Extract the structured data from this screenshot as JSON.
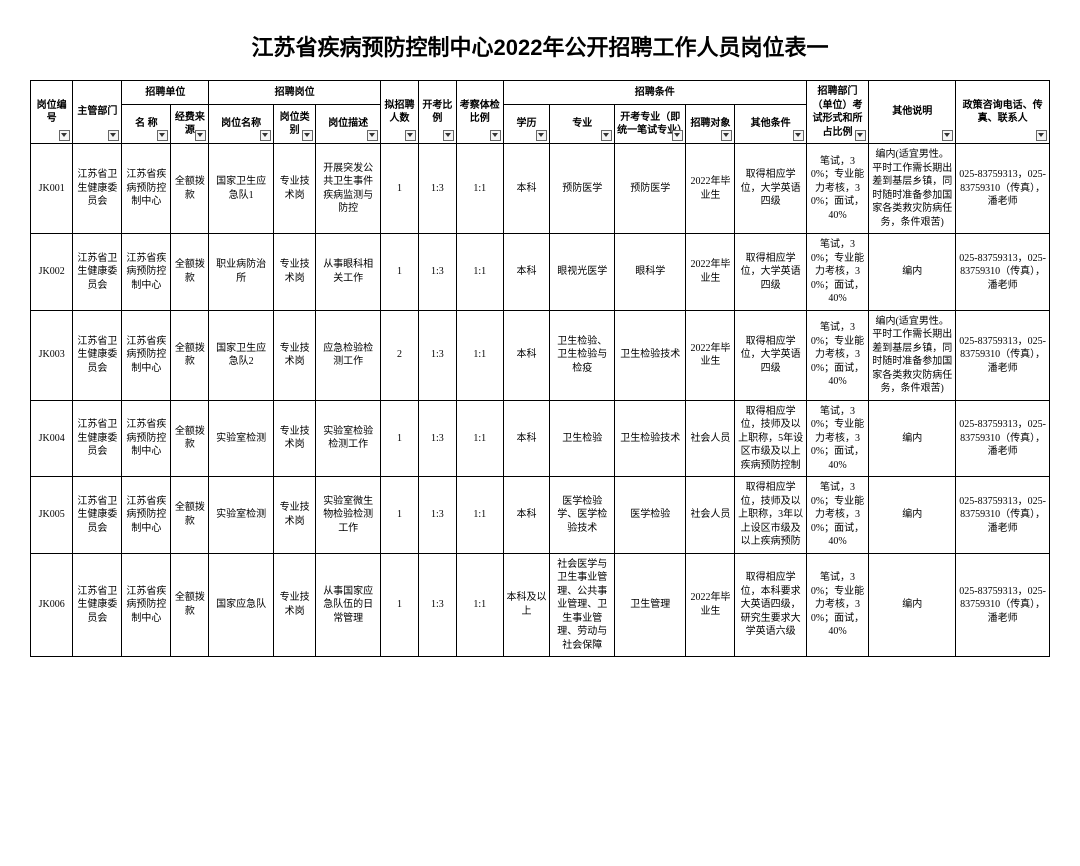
{
  "title": "江苏省疾病预防控制中心2022年公开招聘工作人员岗位表一",
  "headers": {
    "group_unit": "招聘单位",
    "group_post": "招聘岗位",
    "group_cond": "招聘条件",
    "c1": "岗位编号",
    "c2": "主管部门",
    "c3": "名 称",
    "c4": "经费来源",
    "c5": "岗位名称",
    "c6": "岗位类别",
    "c7": "岗位描述",
    "c8": "拟招聘人数",
    "c9": "开考比例",
    "c10": "考察体检比例",
    "c11": "学历",
    "c12": "专业",
    "c13": "开考专业（即统一笔试专业）",
    "c14": "招聘对象",
    "c15": "其他条件",
    "c16": "招聘部门（单位）考试形式和所占比例",
    "c17": "其他说明",
    "c18": "政策咨询电话、传真、联系人"
  },
  "rows": [
    {
      "id": "JK001",
      "dept": "江苏省卫生健康委员会",
      "unit": "江苏省疾病预防控制中心",
      "fund": "全额拨款",
      "post": "国家卫生应急队1",
      "cat": "专业技术岗",
      "desc": "开展突发公共卫生事件疾病监测与防控",
      "num": "1",
      "ratio": "1:3",
      "exam_ratio": "1:1",
      "edu": "本科",
      "major": "预防医学",
      "exam_major": "预防医学",
      "target": "2022年毕业生",
      "other_cond": "取得相应学位，大学英语四级",
      "exam_form": "笔试，30%；专业能力考核，30%；面试，40%",
      "note": "编内(适宜男性。平时工作需长期出差到基层乡镇，同时随时准备参加国家各类救灾防病任务，条件艰苦)",
      "contact": "025-83759313，025-83759310（传真），潘老师"
    },
    {
      "id": "JK002",
      "dept": "江苏省卫生健康委员会",
      "unit": "江苏省疾病预防控制中心",
      "fund": "全额拨款",
      "post": "职业病防治所",
      "cat": "专业技术岗",
      "desc": "从事眼科相关工作",
      "num": "1",
      "ratio": "1:3",
      "exam_ratio": "1:1",
      "edu": "本科",
      "major": "眼视光医学",
      "exam_major": "眼科学",
      "target": "2022年毕业生",
      "other_cond": "取得相应学位，大学英语四级",
      "exam_form": "笔试，30%；专业能力考核，30%；面试，40%",
      "note": "编内",
      "contact": "025-83759313，025-83759310（传真），潘老师"
    },
    {
      "id": "JK003",
      "dept": "江苏省卫生健康委员会",
      "unit": "江苏省疾病预防控制中心",
      "fund": "全额拨款",
      "post": "国家卫生应急队2",
      "cat": "专业技术岗",
      "desc": "应急检验检测工作",
      "num": "2",
      "ratio": "1:3",
      "exam_ratio": "1:1",
      "edu": "本科",
      "major": "卫生检验、卫生检验与检疫",
      "exam_major": "卫生检验技术",
      "target": "2022年毕业生",
      "other_cond": "取得相应学位，大学英语四级",
      "exam_form": "笔试，30%；专业能力考核，30%；面试，40%",
      "note": "编内(适宜男性。平时工作需长期出差到基层乡镇，同时随时准备参加国家各类救灾防病任务，条件艰苦)",
      "contact": "025-83759313，025-83759310（传真），潘老师"
    },
    {
      "id": "JK004",
      "dept": "江苏省卫生健康委员会",
      "unit": "江苏省疾病预防控制中心",
      "fund": "全额拨款",
      "post": "实验室检测",
      "cat": "专业技术岗",
      "desc": "实验室检验检测工作",
      "num": "1",
      "ratio": "1:3",
      "exam_ratio": "1:1",
      "edu": "本科",
      "major": "卫生检验",
      "exam_major": "卫生检验技术",
      "target": "社会人员",
      "other_cond": "取得相应学位，技师及以上职称，5年设区市级及以上疾病预防控制",
      "exam_form": "笔试，30%；专业能力考核，30%；面试，40%",
      "note": "编内",
      "contact": "025-83759313，025-83759310（传真），潘老师"
    },
    {
      "id": "JK005",
      "dept": "江苏省卫生健康委员会",
      "unit": "江苏省疾病预防控制中心",
      "fund": "全额拨款",
      "post": "实验室检测",
      "cat": "专业技术岗",
      "desc": "实验室微生物检验检测工作",
      "num": "1",
      "ratio": "1:3",
      "exam_ratio": "1:1",
      "edu": "本科",
      "major": "医学检验学、医学检验技术",
      "exam_major": "医学检验",
      "target": "社会人员",
      "other_cond": "取得相应学位，技师及以上职称，3年以上设区市级及以上疾病预防",
      "exam_form": "笔试，30%；专业能力考核，30%；面试，40%",
      "note": "编内",
      "contact": "025-83759313，025-83759310（传真），潘老师"
    },
    {
      "id": "JK006",
      "dept": "江苏省卫生健康委员会",
      "unit": "江苏省疾病预防控制中心",
      "fund": "全额拨款",
      "post": "国家应急队",
      "cat": "专业技术岗",
      "desc": "从事国家应急队伍的日常管理",
      "num": "1",
      "ratio": "1:3",
      "exam_ratio": "1:1",
      "edu": "本科及以上",
      "major": "社会医学与卫生事业管理、公共事业管理、卫生事业管理、劳动与社会保障",
      "exam_major": "卫生管理",
      "target": "2022年毕业生",
      "other_cond": "取得相应学位，本科要求大英语四级，研究生要求大学英语六级",
      "exam_form": "笔试，30%；专业能力考核，30%；面试，40%",
      "note": "编内",
      "contact": "025-83759313，025-83759310（传真），潘老师"
    }
  ]
}
